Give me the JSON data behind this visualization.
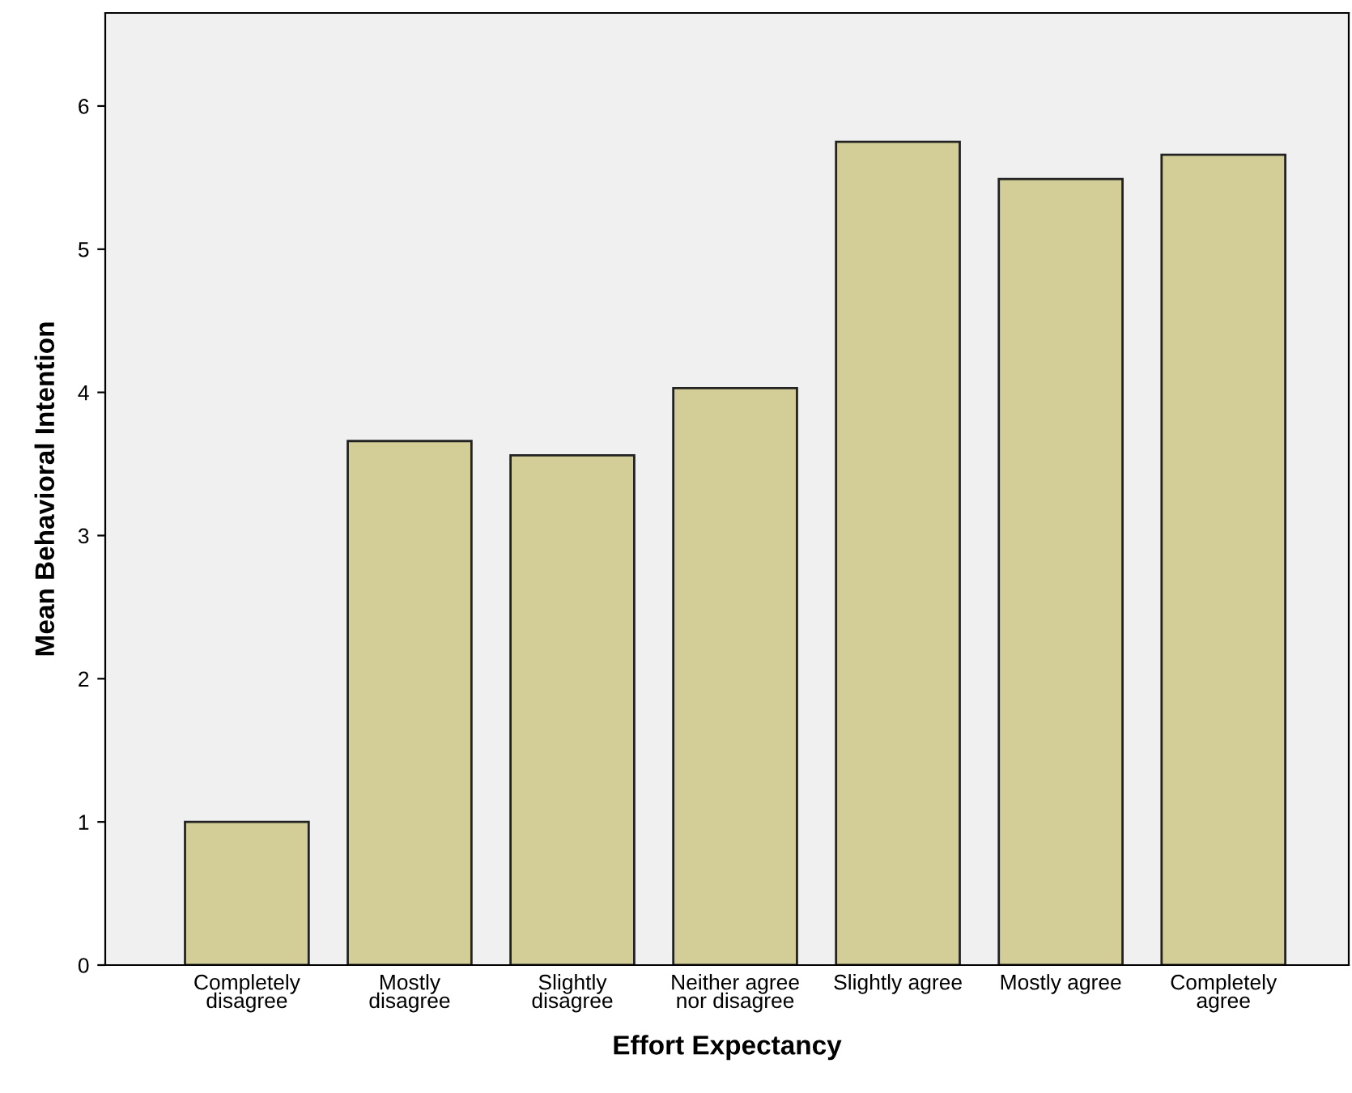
{
  "chart_data": {
    "type": "bar",
    "xlabel": "Effort Expectancy",
    "ylabel": "Mean Behavioral Intention",
    "categories": [
      "Completely\ndisagree",
      "Mostly\ndisagree",
      "Slightly\ndisagree",
      "Neither agree\nnor disagree",
      "Slightly agree",
      "Mostly agree",
      "Completely\nagree"
    ],
    "values": [
      1.0,
      3.66,
      3.56,
      4.03,
      5.75,
      5.49,
      5.66
    ],
    "color": "#d3ce97",
    "ylim": [
      0,
      6.65
    ],
    "yticks": [
      0,
      1,
      2,
      3,
      4,
      5,
      6
    ],
    "grid": false
  }
}
